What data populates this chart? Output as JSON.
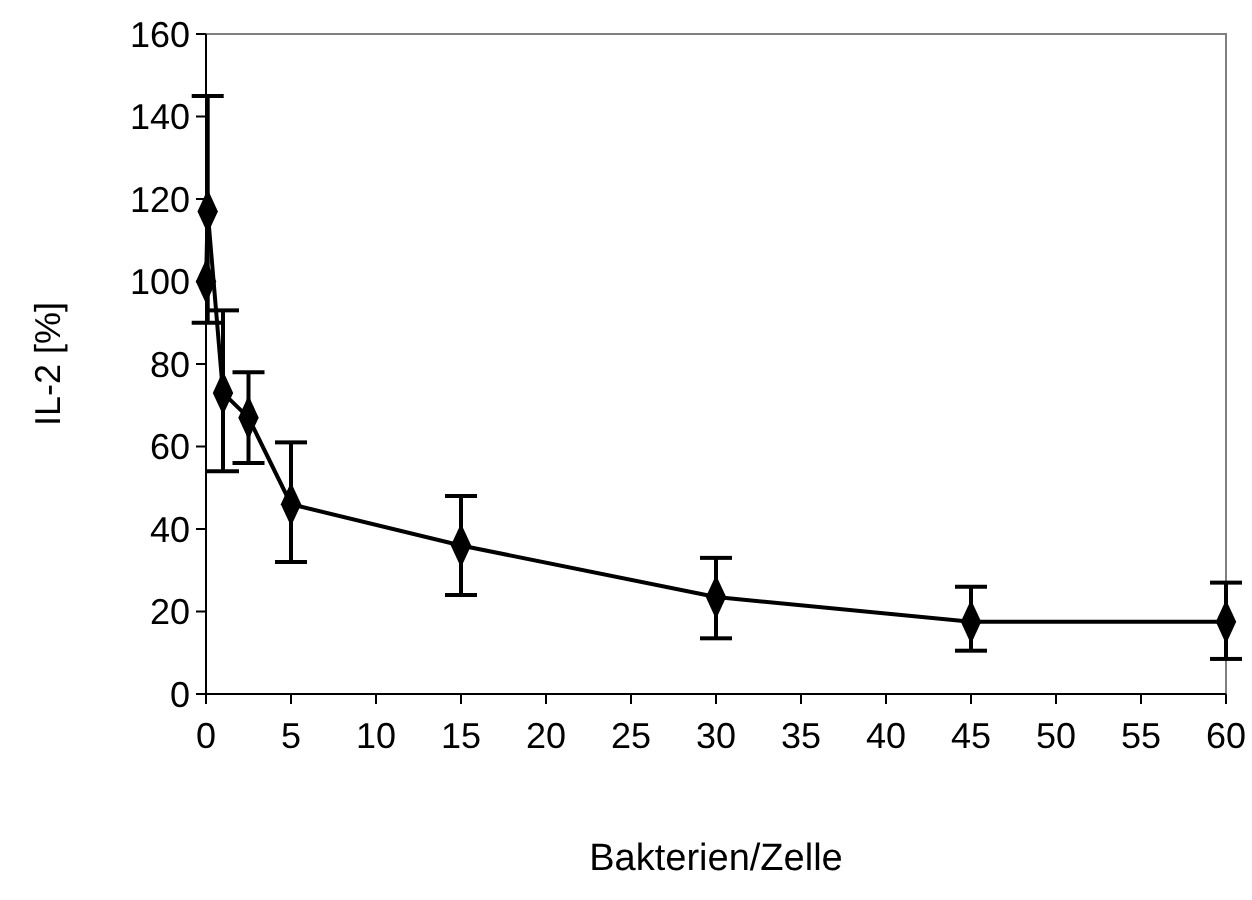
{
  "chart_data": {
    "type": "line",
    "xlabel": "Bakterien/Zelle",
    "ylabel": "IL-2 [%]",
    "x": [
      0,
      0.1,
      1,
      2.5,
      5,
      15,
      30,
      45,
      60
    ],
    "series": [
      {
        "color": "#000000",
        "values": [
          100,
          117,
          73,
          67,
          46,
          36,
          23.5,
          17.5,
          17.5
        ],
        "errors": [
          null,
          [
            90,
            145
          ],
          [
            54,
            93
          ],
          [
            56,
            78
          ],
          [
            32,
            61
          ],
          [
            24,
            48
          ],
          [
            13.5,
            33
          ],
          [
            10.5,
            26
          ],
          [
            8.5,
            27
          ]
        ]
      }
    ],
    "xlim": [
      0,
      60
    ],
    "xticks": [
      0,
      5,
      10,
      15,
      20,
      25,
      30,
      35,
      40,
      45,
      50,
      55,
      60
    ],
    "ylim": [
      0,
      160
    ],
    "yticks": [
      0,
      20,
      40,
      60,
      80,
      100,
      120,
      140,
      160
    ],
    "marker": "diamond",
    "line_style": "solid"
  }
}
